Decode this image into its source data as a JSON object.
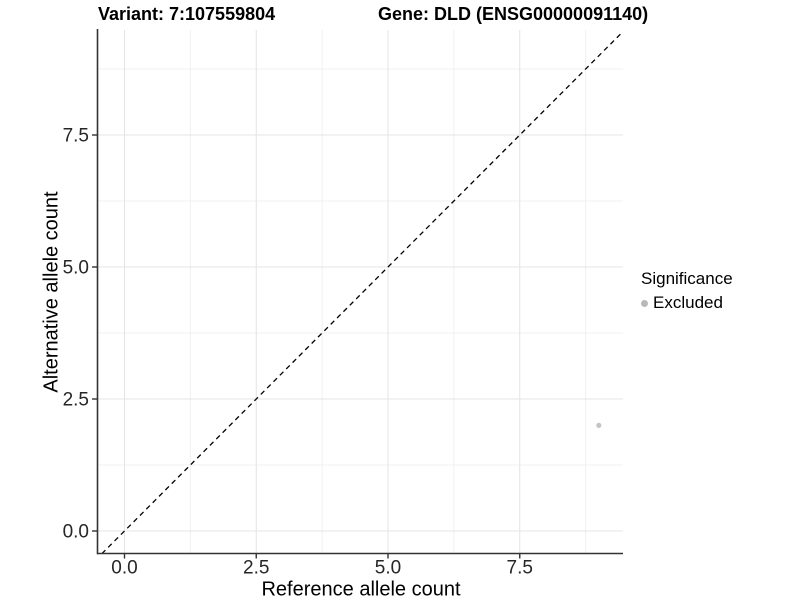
{
  "chart_data": {
    "type": "scatter",
    "title_left": "Variant: 7:107559804",
    "title_right": "Gene: DLD (ENSG00000091140)",
    "xlabel": "Reference allele count",
    "ylabel": "Alternative allele count",
    "xlim": [
      -0.5,
      9.46
    ],
    "ylim": [
      -0.43,
      9.49
    ],
    "x_ticks": {
      "values": [
        0,
        2.5,
        5,
        7.5
      ],
      "labels": [
        "0.0",
        "2.5",
        "5.0",
        "7.5"
      ]
    },
    "y_ticks": {
      "values": [
        0,
        2.5,
        5,
        7.5
      ],
      "labels": [
        "0.0",
        "2.5",
        "5.0",
        "7.5"
      ]
    },
    "x_minor_ticks": [
      1.25,
      3.75,
      6.25,
      8.75
    ],
    "y_minor_ticks": [
      1.25,
      3.75,
      6.25,
      8.75
    ],
    "grid": {
      "enabled": true,
      "major_color": "#e4e4e4",
      "minor_color": "#f0f0f0"
    },
    "axis_line_color": "#333333",
    "tick_mark_color": "#333333",
    "tick_label_color": "#262626",
    "reference_line": {
      "type": "identity",
      "slope": 1,
      "intercept": 0,
      "style": "dashed",
      "color": "#000000"
    },
    "series": [
      {
        "name": "Excluded",
        "point_color": "#c5c5c5",
        "points": [
          {
            "x": 9,
            "y": 2
          }
        ]
      }
    ],
    "legend": {
      "title": "Significance",
      "position": "right",
      "entries": [
        {
          "label": "Excluded",
          "color": "#b9b9b9",
          "marker": "circle"
        }
      ]
    }
  }
}
